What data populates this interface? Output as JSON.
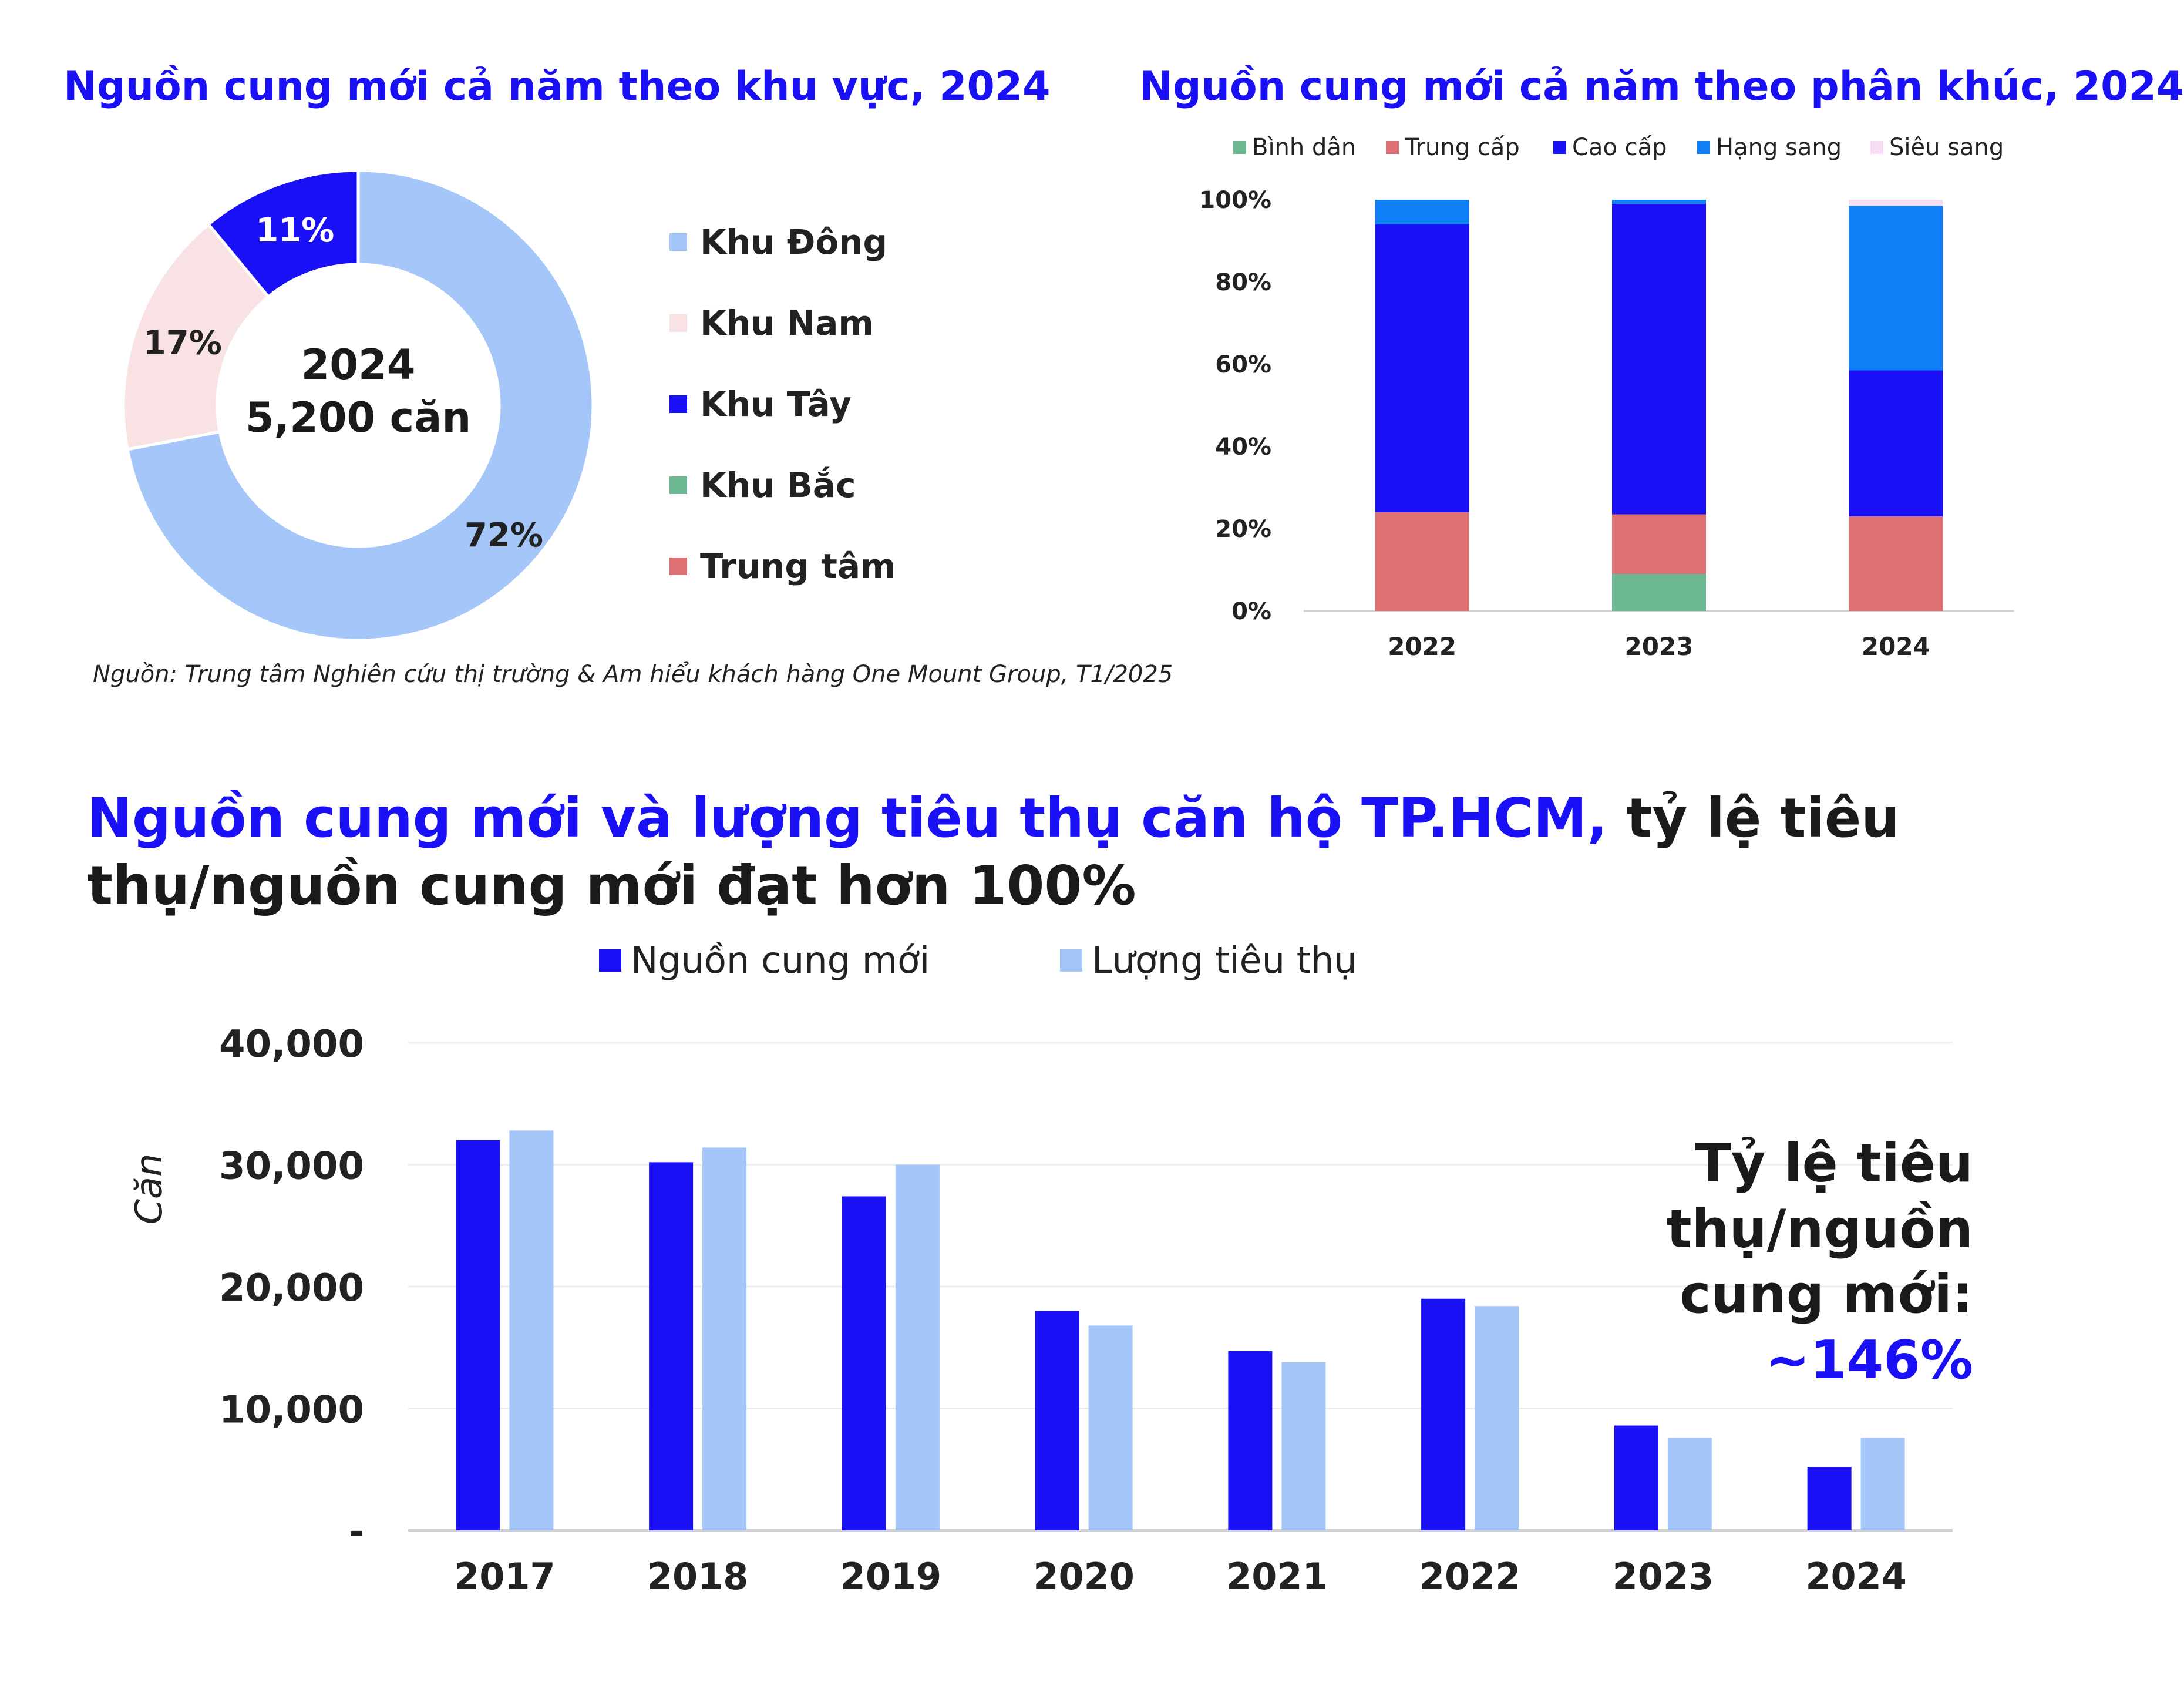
{
  "colors": {
    "blue_dark": "#1a10f5",
    "blue_light": "#a4c6f8",
    "pink_light": "#f9e2e3",
    "green": "#6bb892",
    "red": "#de7174",
    "blue_mid": "#0f7ff7",
    "pink_pale": "#f6dcf4"
  },
  "source": "Nguồn: Trung tâm Nghiên cứu thị trường & Am hiểu khách hàng One Mount Group, T1/2025",
  "bottom_title": {
    "blue_part": "Nguồn cung mới và lượng tiêu thụ căn hộ TP.HCM,",
    "dark_part": " tỷ lệ tiêu thụ/nguồn cung mới đạt hơn 100%"
  },
  "ratio_note": {
    "line1": "Tỷ lệ tiêu",
    "line2": "thụ/nguồn",
    "line3": "cung mới:",
    "value": "~146%"
  },
  "chart_data": [
    {
      "type": "pie",
      "title": "Nguồn cung mới cả năm theo khu vực, 2024",
      "center_label_1": "2024",
      "center_label_2": "5,200 căn",
      "legend_position": "right",
      "slices": [
        {
          "name": "Khu Đông",
          "value": 72,
          "label": "72%",
          "color": "#a4c6f8"
        },
        {
          "name": "Khu Nam",
          "value": 17,
          "label": "17%",
          "color": "#f9e2e3"
        },
        {
          "name": "Khu Tây",
          "value": 11,
          "label": "11%",
          "color": "#1a10f5"
        },
        {
          "name": "Khu Bắc",
          "value": 0,
          "label": "",
          "color": "#6bb892"
        },
        {
          "name": "Trung tâm",
          "value": 0,
          "label": "",
          "color": "#de7174"
        }
      ]
    },
    {
      "type": "bar",
      "stacked": true,
      "title": "Nguồn cung mới cả năm theo phân khúc, 2024",
      "categories": [
        "2022",
        "2023",
        "2024"
      ],
      "ylim": [
        0,
        100
      ],
      "yticks": [
        "0%",
        "20%",
        "40%",
        "60%",
        "80%",
        "100%"
      ],
      "legend_position": "top",
      "series": [
        {
          "name": "Bình dân",
          "color": "#6bb892",
          "values": [
            0,
            9,
            0
          ]
        },
        {
          "name": "Trung cấp",
          "color": "#de7174",
          "values": [
            24,
            14.5,
            23
          ]
        },
        {
          "name": "Cao cấp",
          "color": "#1a10f5",
          "values": [
            70,
            75.5,
            35.5
          ]
        },
        {
          "name": "Hạng sang",
          "color": "#0f7ff7",
          "values": [
            6,
            1,
            40
          ]
        },
        {
          "name": "Siêu sang",
          "color": "#f6dcf4",
          "values": [
            0,
            0,
            1.5
          ]
        }
      ]
    },
    {
      "type": "bar",
      "categories": [
        "2017",
        "2018",
        "2019",
        "2020",
        "2021",
        "2022",
        "2023",
        "2024"
      ],
      "ylabel": "Căn",
      "ylim": [
        0,
        40000
      ],
      "yticks": [
        "-",
        "10,000",
        "20,000",
        "30,000",
        "40,000"
      ],
      "grid": true,
      "legend_position": "top",
      "series": [
        {
          "name": "Nguồn cung mới",
          "color": "#1a10f5",
          "values": [
            32000,
            30200,
            27400,
            18000,
            14700,
            19000,
            8600,
            5200
          ]
        },
        {
          "name": "Lượng tiêu thụ",
          "color": "#a4c6f8",
          "values": [
            32800,
            31400,
            30000,
            16800,
            13800,
            18400,
            7600,
            7600
          ]
        }
      ]
    }
  ]
}
